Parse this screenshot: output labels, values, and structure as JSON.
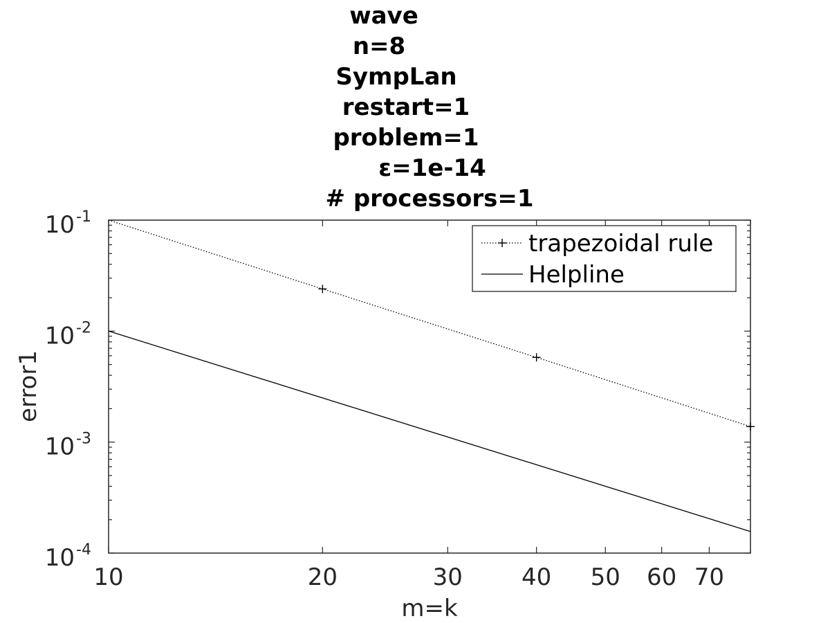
{
  "chart_data": {
    "type": "line",
    "title_lines": [
      "wave",
      "n=8",
      "SympLan",
      "restart=1",
      "problem=1",
      "ε=1e-14",
      "# processors=1"
    ],
    "xlabel": "m=k",
    "ylabel": "error1",
    "x_scale": "log",
    "y_scale": "log",
    "xlim": [
      10,
      80
    ],
    "ylim": [
      0.0001,
      0.1
    ],
    "x_ticks": [
      {
        "value": 10,
        "label": "10"
      },
      {
        "value": 20,
        "label": "20"
      },
      {
        "value": 30,
        "label": "30"
      },
      {
        "value": 40,
        "label": "40"
      },
      {
        "value": 50,
        "label": "50"
      },
      {
        "value": 60,
        "label": "60"
      },
      {
        "value": 70,
        "label": "70"
      }
    ],
    "y_ticks": [
      {
        "value": 0.1,
        "base": "10",
        "exp": "-1"
      },
      {
        "value": 0.01,
        "base": "10",
        "exp": "-2"
      },
      {
        "value": 0.001,
        "base": "10",
        "exp": "-3"
      },
      {
        "value": 0.0001,
        "base": "10",
        "exp": "-4"
      }
    ],
    "grid": false,
    "legend_position": "top-right",
    "series": [
      {
        "name": "trapezoidal rule",
        "style": "dotted",
        "marker": "+",
        "color": "#000000",
        "x": [
          10,
          20,
          40,
          80
        ],
        "y": [
          0.1,
          0.024,
          0.0058,
          0.00138
        ]
      },
      {
        "name": "Helpline",
        "style": "solid",
        "marker": "none",
        "color": "#000000",
        "x": [
          10,
          80
        ],
        "y": [
          0.01,
          0.00015625
        ]
      }
    ]
  }
}
